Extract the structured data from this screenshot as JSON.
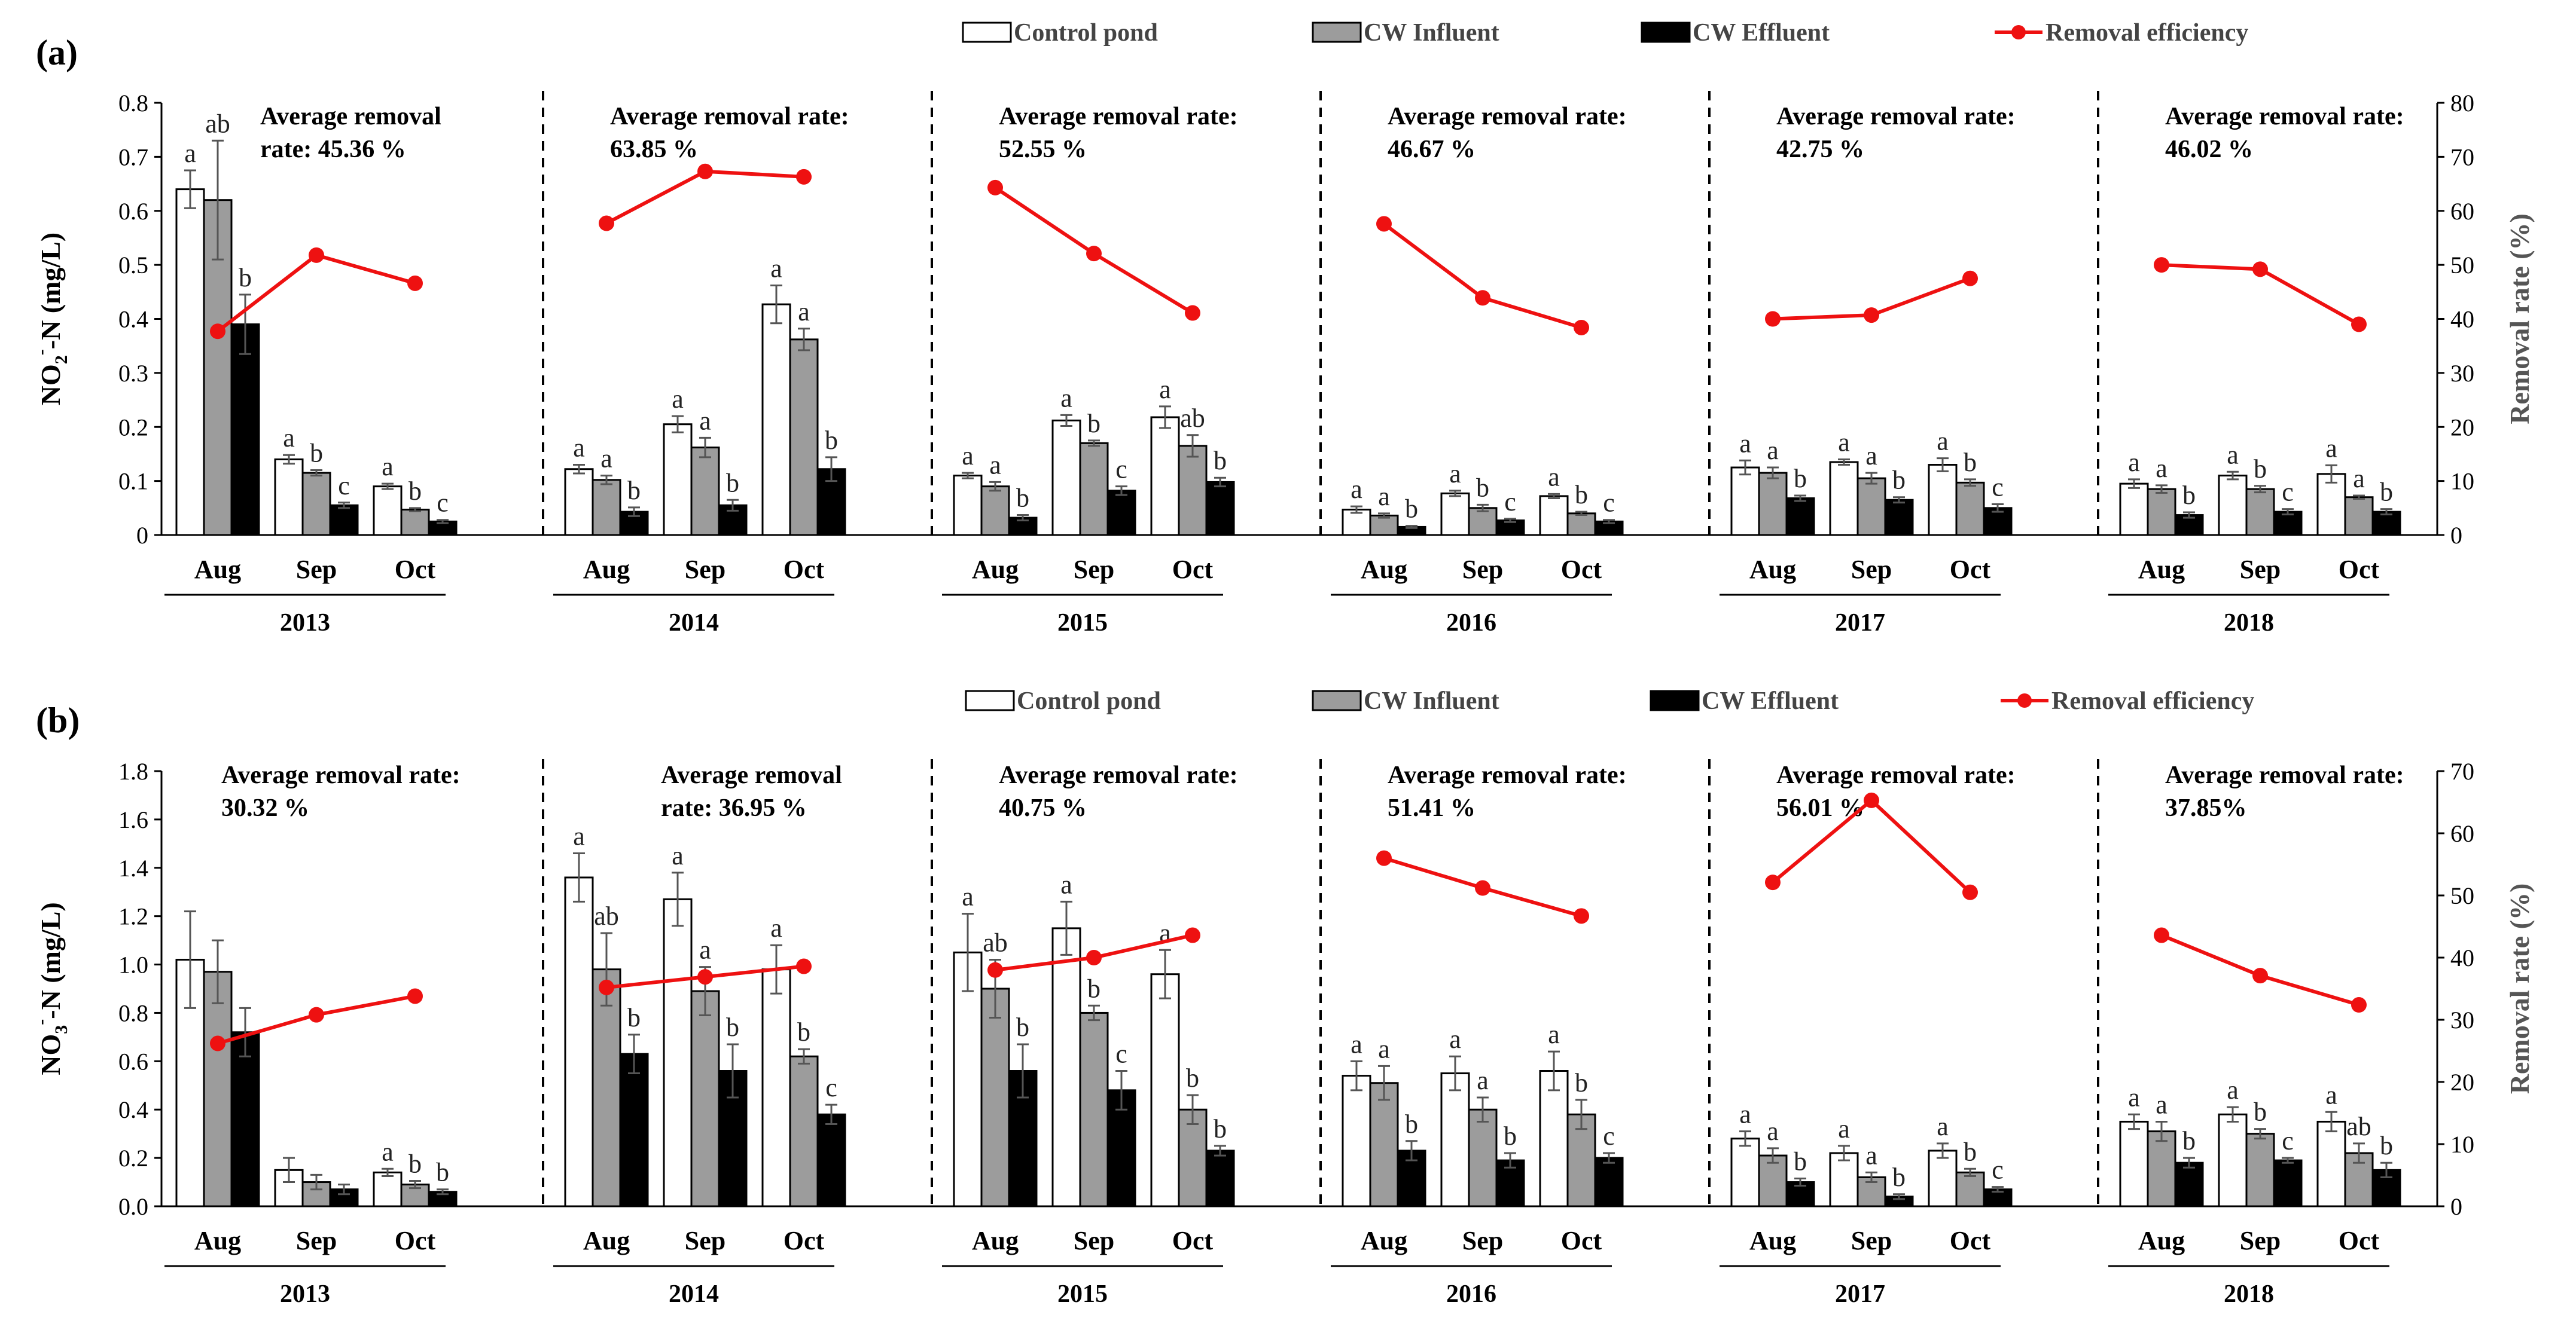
{
  "figure": {
    "panel_a_label": "(a)",
    "panel_b_label": "(b)"
  },
  "chart_data": [
    {
      "type": "bar",
      "panel": "(a)",
      "ylabel": "NO2--N (mg/L)",
      "ylabel_parts": {
        "main": "NO",
        "sub": "2",
        "sup": "-",
        "rest": "-N  (mg/L)"
      },
      "y2label": "Removal rate (%)",
      "ylim": [
        0,
        0.8
      ],
      "yticks": [
        0,
        0.1,
        0.2,
        0.3,
        0.4,
        0.5,
        0.6,
        0.7,
        0.8
      ],
      "ytick_labels": [
        "0",
        "0.1",
        "0.2",
        "0.3",
        "0.4",
        "0.5",
        "0.6",
        "0.7",
        "0.8"
      ],
      "y2lim": [
        0,
        80
      ],
      "y2ticks": [
        0,
        10,
        20,
        30,
        40,
        50,
        60,
        70,
        80
      ],
      "y2tick_labels": [
        "0",
        "10",
        "20",
        "30",
        "40",
        "50",
        "60",
        "70",
        "80"
      ],
      "legend": [
        "Control pond",
        "CW Influent",
        "CW Effluent",
        "Removal efficiency"
      ],
      "categories": [
        "Aug",
        "Sep",
        "Oct"
      ],
      "groups": [
        {
          "year": "2013",
          "annotation": [
            "Average removal",
            "rate: 45.36 %"
          ],
          "series": [
            {
              "name": "Control pond",
              "values": [
                0.64,
                0.14,
                0.09
              ],
              "errors": [
                0.035,
                0.008,
                0.005
              ],
              "letters": [
                "a",
                "a",
                "a"
              ]
            },
            {
              "name": "CW Influent",
              "values": [
                0.62,
                0.115,
                0.047
              ],
              "errors": [
                0.11,
                0.005,
                0.003
              ],
              "letters": [
                "ab",
                "b",
                "b"
              ]
            },
            {
              "name": "CW Effluent",
              "values": [
                0.39,
                0.055,
                0.025
              ],
              "errors": [
                0.055,
                0.005,
                0.003
              ],
              "letters": [
                "b",
                "c",
                "c"
              ]
            }
          ],
          "removal": [
            37.7,
            51.8,
            46.6
          ]
        },
        {
          "year": "2014",
          "annotation": [
            "Average removal rate:",
            "63.85 %"
          ],
          "series": [
            {
              "name": "Control pond",
              "values": [
                0.122,
                0.205,
                0.427
              ],
              "errors": [
                0.008,
                0.015,
                0.035
              ],
              "letters": [
                "a",
                "a",
                "a"
              ]
            },
            {
              "name": "CW Influent",
              "values": [
                0.102,
                0.162,
                0.362
              ],
              "errors": [
                0.008,
                0.018,
                0.02
              ],
              "letters": [
                "a",
                "a",
                "a"
              ]
            },
            {
              "name": "CW Effluent",
              "values": [
                0.043,
                0.055,
                0.122
              ],
              "errors": [
                0.008,
                0.01,
                0.022
              ],
              "letters": [
                "b",
                "b",
                "b"
              ]
            }
          ],
          "removal": [
            57.7,
            67.3,
            66.3
          ]
        },
        {
          "year": "2015",
          "annotation": [
            "Average removal rate:",
            "52.55 %"
          ],
          "series": [
            {
              "name": "Control pond",
              "values": [
                0.11,
                0.212,
                0.218
              ],
              "errors": [
                0.005,
                0.01,
                0.02
              ],
              "letters": [
                "a",
                "a",
                "a"
              ]
            },
            {
              "name": "CW Influent",
              "values": [
                0.09,
                0.17,
                0.165
              ],
              "errors": [
                0.008,
                0.005,
                0.02
              ],
              "letters": [
                "a",
                "b",
                "ab"
              ]
            },
            {
              "name": "CW Effluent",
              "values": [
                0.032,
                0.082,
                0.098
              ],
              "errors": [
                0.005,
                0.008,
                0.008
              ],
              "letters": [
                "b",
                "c",
                "b"
              ]
            }
          ],
          "removal": [
            64.3,
            52.1,
            41.1
          ]
        },
        {
          "year": "2016",
          "annotation": [
            "Average removal rate:",
            "46.67 %"
          ],
          "series": [
            {
              "name": "Control pond",
              "values": [
                0.047,
                0.077,
                0.072
              ],
              "errors": [
                0.006,
                0.005,
                0.004
              ],
              "letters": [
                "a",
                "a",
                "a"
              ]
            },
            {
              "name": "CW Influent",
              "values": [
                0.036,
                0.05,
                0.04
              ],
              "errors": [
                0.004,
                0.006,
                0.003
              ],
              "letters": [
                "a",
                "b",
                "b"
              ]
            },
            {
              "name": "CW Effluent",
              "values": [
                0.015,
                0.027,
                0.025
              ],
              "errors": [
                0.002,
                0.003,
                0.003
              ],
              "letters": [
                "b",
                "c",
                "c"
              ]
            }
          ],
          "removal": [
            57.6,
            43.9,
            38.4
          ]
        },
        {
          "year": "2017",
          "annotation": [
            "Average removal rate:",
            "42.75 %"
          ],
          "series": [
            {
              "name": "Control pond",
              "values": [
                0.125,
                0.135,
                0.13
              ],
              "errors": [
                0.013,
                0.005,
                0.012
              ],
              "letters": [
                "a",
                "a",
                "a"
              ]
            },
            {
              "name": "CW Influent",
              "values": [
                0.115,
                0.105,
                0.097
              ],
              "errors": [
                0.01,
                0.01,
                0.006
              ],
              "letters": [
                "a",
                "a",
                "b"
              ]
            },
            {
              "name": "CW Effluent",
              "values": [
                0.068,
                0.065,
                0.05
              ],
              "errors": [
                0.005,
                0.005,
                0.007
              ],
              "letters": [
                "b",
                "b",
                "c"
              ]
            }
          ],
          "removal": [
            40,
            40.7,
            47.5
          ]
        },
        {
          "year": "2018",
          "annotation": [
            "Average removal rate:",
            "46.02 %"
          ],
          "series": [
            {
              "name": "Control pond",
              "values": [
                0.095,
                0.11,
                0.113
              ],
              "errors": [
                0.008,
                0.007,
                0.016
              ],
              "letters": [
                "a",
                "a",
                "a"
              ]
            },
            {
              "name": "CW Influent",
              "values": [
                0.085,
                0.085,
                0.07
              ],
              "errors": [
                0.007,
                0.006,
                0.003
              ],
              "letters": [
                "a",
                "b",
                "a"
              ]
            },
            {
              "name": "CW Effluent",
              "values": [
                0.037,
                0.043,
                0.043
              ],
              "errors": [
                0.005,
                0.005,
                0.005
              ],
              "letters": [
                "b",
                "c",
                "b"
              ]
            }
          ],
          "removal": [
            50,
            49.2,
            39
          ]
        }
      ]
    },
    {
      "type": "bar",
      "panel": "(b)",
      "ylabel": "NO3--N (mg/L)",
      "ylabel_parts": {
        "main": "NO",
        "sub": "3",
        "sup": "-",
        "rest": "-N  (mg/L)"
      },
      "y2label": "Removal rate (%)",
      "ylim": [
        0,
        1.8
      ],
      "yticks": [
        0,
        0.2,
        0.4,
        0.6,
        0.8,
        1.0,
        1.2,
        1.4,
        1.6,
        1.8
      ],
      "ytick_labels": [
        "0.0",
        "0.2",
        "0.4",
        "0.6",
        "0.8",
        "1.0",
        "1.2",
        "1.4",
        "1.6",
        "1.8"
      ],
      "y2lim": [
        0,
        70
      ],
      "y2ticks": [
        0,
        10,
        20,
        30,
        40,
        50,
        60,
        70
      ],
      "y2tick_labels": [
        "0",
        "10",
        "20",
        "30",
        "40",
        "50",
        "60",
        "70"
      ],
      "legend": [
        "Control pond",
        "CW Influent",
        "CW Effluent",
        "Removal efficiency"
      ],
      "categories": [
        "Aug",
        "Sep",
        "Oct"
      ],
      "groups": [
        {
          "year": "2013",
          "annotation": [
            "Average removal rate:",
            "30.32 %"
          ],
          "series": [
            {
              "name": "Control pond",
              "values": [
                1.02,
                0.15,
                0.14
              ],
              "errors": [
                0.2,
                0.05,
                0.015
              ],
              "letters": [
                "",
                "",
                "a"
              ]
            },
            {
              "name": "CW Influent",
              "values": [
                0.97,
                0.1,
                0.09
              ],
              "errors": [
                0.13,
                0.03,
                0.015
              ],
              "letters": [
                "",
                "",
                "b"
              ]
            },
            {
              "name": "CW Effluent",
              "values": [
                0.72,
                0.07,
                0.06
              ],
              "errors": [
                0.1,
                0.02,
                0.01
              ],
              "letters": [
                "",
                "",
                "b"
              ]
            }
          ],
          "removal": [
            26.2,
            30.8,
            33.8
          ]
        },
        {
          "year": "2014",
          "annotation": [
            "Average removal",
            "rate: 36.95 %"
          ],
          "series": [
            {
              "name": "Control pond",
              "values": [
                1.36,
                1.27,
                0.98
              ],
              "errors": [
                0.1,
                0.11,
                0.1
              ],
              "letters": [
                "a",
                "a",
                "a"
              ]
            },
            {
              "name": "CW Influent",
              "values": [
                0.98,
                0.89,
                0.62
              ],
              "errors": [
                0.15,
                0.1,
                0.03
              ],
              "letters": [
                "ab",
                "a",
                "b"
              ]
            },
            {
              "name": "CW Effluent",
              "values": [
                0.63,
                0.56,
                0.38
              ],
              "errors": [
                0.08,
                0.11,
                0.04
              ],
              "letters": [
                "b",
                "b",
                "c"
              ]
            }
          ],
          "removal": [
            35.2,
            36.9,
            38.6
          ]
        },
        {
          "year": "2015",
          "annotation": [
            "Average removal rate:",
            "40.75 %"
          ],
          "series": [
            {
              "name": "Control pond",
              "values": [
                1.05,
                1.15,
                0.96
              ],
              "errors": [
                0.16,
                0.11,
                0.1
              ],
              "letters": [
                "a",
                "a",
                "a"
              ]
            },
            {
              "name": "CW Influent",
              "values": [
                0.9,
                0.8,
                0.4
              ],
              "errors": [
                0.12,
                0.03,
                0.06
              ],
              "letters": [
                "ab",
                "b",
                "b"
              ]
            },
            {
              "name": "CW Effluent",
              "values": [
                0.56,
                0.48,
                0.23
              ],
              "errors": [
                0.11,
                0.08,
                0.02
              ],
              "letters": [
                "b",
                "c",
                "b"
              ]
            }
          ],
          "removal": [
            38,
            40,
            43.6
          ]
        },
        {
          "year": "2016",
          "annotation": [
            "Average removal rate:",
            "51.41 %"
          ],
          "series": [
            {
              "name": "Control pond",
              "values": [
                0.54,
                0.55,
                0.56
              ],
              "errors": [
                0.06,
                0.07,
                0.08
              ],
              "letters": [
                "a",
                "a",
                "a"
              ]
            },
            {
              "name": "CW Influent",
              "values": [
                0.51,
                0.4,
                0.38
              ],
              "errors": [
                0.07,
                0.05,
                0.06
              ],
              "letters": [
                "a",
                "a",
                "b"
              ]
            },
            {
              "name": "CW Effluent",
              "values": [
                0.23,
                0.19,
                0.2
              ],
              "errors": [
                0.04,
                0.03,
                0.02
              ],
              "letters": [
                "b",
                "b",
                "c"
              ]
            }
          ],
          "removal": [
            56,
            51.2,
            46.7
          ]
        },
        {
          "year": "2017",
          "annotation": [
            "Average removal rate:",
            "56.01 %"
          ],
          "series": [
            {
              "name": "Control pond",
              "values": [
                0.28,
                0.22,
                0.23
              ],
              "errors": [
                0.03,
                0.03,
                0.03
              ],
              "letters": [
                "a",
                "a",
                "a"
              ]
            },
            {
              "name": "CW Influent",
              "values": [
                0.21,
                0.12,
                0.14
              ],
              "errors": [
                0.03,
                0.02,
                0.015
              ],
              "letters": [
                "a",
                "a",
                "b"
              ]
            },
            {
              "name": "CW Effluent",
              "values": [
                0.1,
                0.04,
                0.07
              ],
              "errors": [
                0.015,
                0.01,
                0.01
              ],
              "letters": [
                "b",
                "b",
                "c"
              ]
            }
          ],
          "removal": [
            52.1,
            65.3,
            50.5
          ]
        },
        {
          "year": "2018",
          "annotation": [
            "Average removal rate:",
            "37.85%"
          ],
          "series": [
            {
              "name": "Control pond",
              "values": [
                0.35,
                0.38,
                0.35
              ],
              "errors": [
                0.03,
                0.03,
                0.04
              ],
              "letters": [
                "a",
                "a",
                "a"
              ]
            },
            {
              "name": "CW Influent",
              "values": [
                0.31,
                0.3,
                0.22
              ],
              "errors": [
                0.04,
                0.02,
                0.04
              ],
              "letters": [
                "a",
                "b",
                "ab"
              ]
            },
            {
              "name": "CW Effluent",
              "values": [
                0.18,
                0.19,
                0.15
              ],
              "errors": [
                0.02,
                0.01,
                0.03
              ],
              "letters": [
                "b",
                "c",
                "b"
              ]
            }
          ],
          "removal": [
            43.6,
            37.1,
            32.4
          ]
        }
      ]
    }
  ]
}
